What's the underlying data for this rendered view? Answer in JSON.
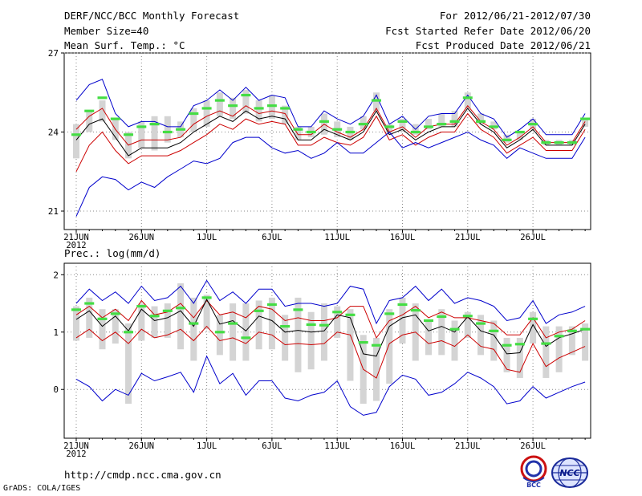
{
  "header": {
    "title": "DERF/NCC/BCC Monthly Forecast",
    "member_size": "Member Size=40",
    "variable_top": "Mean Surf. Temp.: °C",
    "period": "For 2012/06/21-2012/07/30",
    "started": "Fcst Started Refer Date 2012/06/20",
    "produced": "Fcst Produced Date 2012/06/21"
  },
  "footer": {
    "url": "http://cmdp.ncc.cma.gov.cn",
    "grads": "GrADS: COLA/IGES",
    "logo_bcc": "BCC",
    "logo_ncc": "NCC"
  },
  "colors": {
    "envelope": "#0000cc",
    "quantile": "#cc0000",
    "mean": "#000000",
    "box": "#d4d4d4",
    "marker": "#44dd44",
    "grid": "#888888"
  },
  "chart_data": [
    {
      "type": "line",
      "title": "Mean Surf. Temp.: °C",
      "x_tick_labels": [
        "21JUN",
        "26JUN",
        "1JUL",
        "6JUL",
        "11JUL",
        "16JUL",
        "21JUL",
        "26JUL"
      ],
      "x_year_label": "2012",
      "day_count": 40,
      "ylim": [
        20.3,
        27
      ],
      "y_ticks": [
        21,
        24,
        27
      ],
      "series": [
        {
          "name": "max",
          "values": [
            25.2,
            25.8,
            26.0,
            24.7,
            24.2,
            24.4,
            24.4,
            24.2,
            24.2,
            25.0,
            25.2,
            25.6,
            25.2,
            25.7,
            25.2,
            25.4,
            25.3,
            24.2,
            24.2,
            24.8,
            24.5,
            24.3,
            24.6,
            25.4,
            24.3,
            24.6,
            24.1,
            24.6,
            24.7,
            24.7,
            25.4,
            24.7,
            24.5,
            23.8,
            24.1,
            24.5,
            23.9,
            23.9,
            23.9,
            24.7
          ]
        },
        {
          "name": "upper",
          "values": [
            24.1,
            24.6,
            24.9,
            24.1,
            23.5,
            23.7,
            23.7,
            23.7,
            23.8,
            24.3,
            24.6,
            24.8,
            24.6,
            25.0,
            24.7,
            24.8,
            24.7,
            23.9,
            23.9,
            24.3,
            24.0,
            23.8,
            24.1,
            24.9,
            24.0,
            24.2,
            23.8,
            24.2,
            24.3,
            24.3,
            25.0,
            24.4,
            24.1,
            23.5,
            23.8,
            24.2,
            23.6,
            23.6,
            23.6,
            24.4
          ]
        },
        {
          "name": "mean",
          "values": [
            23.7,
            24.3,
            24.5,
            23.8,
            23.1,
            23.4,
            23.4,
            23.4,
            23.6,
            24.0,
            24.3,
            24.6,
            24.4,
            24.8,
            24.5,
            24.6,
            24.5,
            23.7,
            23.7,
            24.1,
            23.9,
            23.7,
            24.0,
            24.8,
            23.9,
            24.1,
            23.7,
            24.0,
            24.2,
            24.2,
            24.9,
            24.3,
            24.0,
            23.4,
            23.7,
            24.1,
            23.5,
            23.5,
            23.5,
            24.3
          ]
        },
        {
          "name": "lower",
          "values": [
            22.5,
            23.5,
            24.0,
            23.3,
            22.8,
            23.1,
            23.1,
            23.1,
            23.3,
            23.6,
            23.9,
            24.3,
            24.1,
            24.5,
            24.3,
            24.4,
            24.3,
            23.5,
            23.5,
            23.8,
            23.6,
            23.5,
            23.8,
            24.6,
            23.7,
            23.9,
            23.5,
            23.8,
            24.0,
            24.0,
            24.7,
            24.1,
            23.8,
            23.2,
            23.5,
            23.8,
            23.3,
            23.3,
            23.3,
            24.1
          ]
        },
        {
          "name": "min",
          "values": [
            20.8,
            21.9,
            22.3,
            22.2,
            21.8,
            22.1,
            21.9,
            22.3,
            22.6,
            22.9,
            22.8,
            23.0,
            23.6,
            23.8,
            23.8,
            23.4,
            23.2,
            23.3,
            23.0,
            23.2,
            23.6,
            23.2,
            23.2,
            23.6,
            24.0,
            23.4,
            23.6,
            23.4,
            23.6,
            23.8,
            24.0,
            23.7,
            23.5,
            23.0,
            23.4,
            23.2,
            23.0,
            23.0,
            23.0,
            23.8
          ]
        }
      ],
      "boxes": [
        {
          "lo": 23.0,
          "hi": 24.3
        },
        {
          "lo": 24.0,
          "hi": 24.8
        },
        {
          "lo": 24.4,
          "hi": 25.2
        },
        {
          "lo": 23.7,
          "hi": 24.5
        },
        {
          "lo": 23.0,
          "hi": 24.0
        },
        {
          "lo": 23.4,
          "hi": 24.4
        },
        {
          "lo": 23.3,
          "hi": 24.6
        },
        {
          "lo": 23.6,
          "hi": 24.6
        },
        {
          "lo": 23.8,
          "hi": 24.4
        },
        {
          "lo": 24.0,
          "hi": 24.9
        },
        {
          "lo": 24.2,
          "hi": 25.2
        },
        {
          "lo": 24.6,
          "hi": 25.5
        },
        {
          "lo": 24.5,
          "hi": 25.3
        },
        {
          "lo": 24.7,
          "hi": 25.6
        },
        {
          "lo": 24.4,
          "hi": 25.2
        },
        {
          "lo": 24.5,
          "hi": 25.4
        },
        {
          "lo": 24.3,
          "hi": 25.0
        },
        {
          "lo": 23.7,
          "hi": 24.2
        },
        {
          "lo": 23.8,
          "hi": 24.2
        },
        {
          "lo": 23.9,
          "hi": 24.7
        },
        {
          "lo": 23.8,
          "hi": 24.4
        },
        {
          "lo": 23.7,
          "hi": 24.2
        },
        {
          "lo": 24.1,
          "hi": 24.6
        },
        {
          "lo": 24.8,
          "hi": 25.5
        },
        {
          "lo": 23.9,
          "hi": 24.3
        },
        {
          "lo": 24.0,
          "hi": 24.5
        },
        {
          "lo": 23.9,
          "hi": 24.3
        },
        {
          "lo": 24.1,
          "hi": 24.5
        },
        {
          "lo": 24.2,
          "hi": 24.7
        },
        {
          "lo": 24.2,
          "hi": 24.8
        },
        {
          "lo": 24.9,
          "hi": 25.5
        },
        {
          "lo": 24.3,
          "hi": 24.7
        },
        {
          "lo": 24.1,
          "hi": 24.4
        },
        {
          "lo": 23.6,
          "hi": 23.9
        },
        {
          "lo": 23.7,
          "hi": 24.0
        },
        {
          "lo": 24.1,
          "hi": 24.5
        },
        {
          "lo": 23.5,
          "hi": 23.7
        },
        {
          "lo": 23.5,
          "hi": 23.7
        },
        {
          "lo": 23.5,
          "hi": 23.7
        },
        {
          "lo": 24.2,
          "hi": 24.5
        }
      ],
      "markers": [
        23.9,
        24.8,
        25.3,
        24.5,
        23.9,
        24.2,
        24.3,
        24.0,
        24.1,
        24.7,
        24.9,
        25.2,
        25.0,
        25.4,
        24.9,
        25.0,
        24.9,
        24.1,
        24.0,
        24.4,
        24.1,
        24.0,
        24.3,
        25.2,
        24.2,
        24.4,
        24.0,
        24.2,
        24.3,
        24.4,
        25.3,
        24.4,
        24.2,
        23.7,
        24.0,
        24.3,
        23.6,
        23.6,
        23.6,
        24.5
      ]
    },
    {
      "type": "line",
      "title": "Prec.: log(mm/d)",
      "x_tick_labels": [
        "21JUN",
        "26JUN",
        "1JUL",
        "6JUL",
        "11JUL",
        "16JUL",
        "21JUL",
        "26JUL"
      ],
      "x_year_label": "2012",
      "day_count": 40,
      "ylim": [
        -0.85,
        2.2
      ],
      "y_ticks": [
        0,
        1,
        2
      ],
      "series": [
        {
          "name": "max",
          "values": [
            1.5,
            1.75,
            1.55,
            1.7,
            1.5,
            1.8,
            1.55,
            1.6,
            1.8,
            1.5,
            1.9,
            1.55,
            1.7,
            1.5,
            1.75,
            1.75,
            1.45,
            1.5,
            1.5,
            1.45,
            1.5,
            1.8,
            1.75,
            1.15,
            1.55,
            1.6,
            1.8,
            1.55,
            1.75,
            1.5,
            1.6,
            1.55,
            1.45,
            1.2,
            1.25,
            1.55,
            1.15,
            1.3,
            1.35,
            1.45
          ]
        },
        {
          "name": "upper",
          "values": [
            1.3,
            1.45,
            1.25,
            1.4,
            1.2,
            1.55,
            1.3,
            1.35,
            1.5,
            1.25,
            1.55,
            1.3,
            1.35,
            1.25,
            1.45,
            1.4,
            1.2,
            1.25,
            1.2,
            1.2,
            1.25,
            1.45,
            1.45,
            0.9,
            1.2,
            1.3,
            1.45,
            1.25,
            1.35,
            1.25,
            1.25,
            1.2,
            1.15,
            0.95,
            0.95,
            1.25,
            0.9,
            1.0,
            1.05,
            1.2
          ]
        },
        {
          "name": "mean",
          "values": [
            1.22,
            1.37,
            1.1,
            1.28,
            1.02,
            1.4,
            1.2,
            1.25,
            1.37,
            1.1,
            1.57,
            1.14,
            1.2,
            1.02,
            1.28,
            1.2,
            1.0,
            1.03,
            1.0,
            1.02,
            1.3,
            1.25,
            0.62,
            0.58,
            1.1,
            1.25,
            1.3,
            1.02,
            1.1,
            1.0,
            1.27,
            1.02,
            0.95,
            0.62,
            0.64,
            1.13,
            0.75,
            0.9,
            0.97,
            1.05
          ]
        },
        {
          "name": "lower",
          "values": [
            0.9,
            1.05,
            0.85,
            1.0,
            0.8,
            1.05,
            0.9,
            0.95,
            1.05,
            0.85,
            1.1,
            0.85,
            0.9,
            0.8,
            1.0,
            0.95,
            0.78,
            0.8,
            0.78,
            0.8,
            1.0,
            0.95,
            0.35,
            0.2,
            0.8,
            0.95,
            1.0,
            0.8,
            0.85,
            0.75,
            0.95,
            0.75,
            0.7,
            0.35,
            0.3,
            0.8,
            0.4,
            0.55,
            0.65,
            0.75
          ]
        },
        {
          "name": "min",
          "values": [
            0.18,
            0.05,
            -0.2,
            0.0,
            -0.1,
            0.28,
            0.15,
            0.22,
            0.3,
            -0.05,
            0.58,
            0.1,
            0.28,
            -0.1,
            0.15,
            0.15,
            -0.15,
            -0.2,
            -0.1,
            -0.05,
            0.15,
            -0.3,
            -0.45,
            -0.4,
            0.05,
            0.25,
            0.18,
            -0.1,
            -0.05,
            0.1,
            0.3,
            0.2,
            0.05,
            -0.25,
            -0.2,
            0.05,
            -0.15,
            -0.05,
            0.05,
            0.13
          ]
        }
      ],
      "boxes": [
        {
          "lo": 0.85,
          "hi": 1.45
        },
        {
          "lo": 0.9,
          "hi": 1.6
        },
        {
          "lo": 0.7,
          "hi": 1.4
        },
        {
          "lo": 0.8,
          "hi": 1.4
        },
        {
          "lo": -0.25,
          "hi": 1.15
        },
        {
          "lo": 0.85,
          "hi": 1.5
        },
        {
          "lo": 0.9,
          "hi": 1.45
        },
        {
          "lo": 0.9,
          "hi": 1.5
        },
        {
          "lo": 0.7,
          "hi": 1.85
        },
        {
          "lo": 0.5,
          "hi": 1.6
        },
        {
          "lo": 1.05,
          "hi": 1.65
        },
        {
          "lo": 0.6,
          "hi": 1.3
        },
        {
          "lo": 0.5,
          "hi": 1.5
        },
        {
          "lo": 0.5,
          "hi": 1.5
        },
        {
          "lo": 0.7,
          "hi": 1.55
        },
        {
          "lo": 0.7,
          "hi": 1.6
        },
        {
          "lo": 0.5,
          "hi": 1.3
        },
        {
          "lo": 0.3,
          "hi": 1.6
        },
        {
          "lo": 0.35,
          "hi": 1.35
        },
        {
          "lo": 0.5,
          "hi": 1.5
        },
        {
          "lo": 0.9,
          "hi": 1.45
        },
        {
          "lo": 0.15,
          "hi": 1.4
        },
        {
          "lo": -0.25,
          "hi": 0.95
        },
        {
          "lo": -0.2,
          "hi": 0.9
        },
        {
          "lo": 0.1,
          "hi": 1.4
        },
        {
          "lo": 0.8,
          "hi": 1.6
        },
        {
          "lo": 0.5,
          "hi": 1.5
        },
        {
          "lo": 0.6,
          "hi": 1.2
        },
        {
          "lo": 0.6,
          "hi": 1.4
        },
        {
          "lo": 0.5,
          "hi": 1.2
        },
        {
          "lo": 0.9,
          "hi": 1.35
        },
        {
          "lo": 0.6,
          "hi": 1.3
        },
        {
          "lo": 0.5,
          "hi": 1.2
        },
        {
          "lo": 0.3,
          "hi": 0.9
        },
        {
          "lo": 0.2,
          "hi": 0.9
        },
        {
          "lo": 0.8,
          "hi": 1.35
        },
        {
          "lo": 0.2,
          "hi": 1.1
        },
        {
          "lo": 0.3,
          "hi": 1.1
        },
        {
          "lo": 0.6,
          "hi": 1.1
        },
        {
          "lo": 0.5,
          "hi": 1.15
        }
      ],
      "markers": [
        1.39,
        1.5,
        1.23,
        1.32,
        1.0,
        1.45,
        1.28,
        1.37,
        1.42,
        1.15,
        1.6,
        1.0,
        1.15,
        0.9,
        1.37,
        1.48,
        1.1,
        1.39,
        1.13,
        1.12,
        1.35,
        1.3,
        0.82,
        0.77,
        1.32,
        1.48,
        1.38,
        1.2,
        1.27,
        1.05,
        1.28,
        1.15,
        1.02,
        0.77,
        0.79,
        1.23,
        0.8,
        0.93,
        1.02,
        1.05
      ]
    }
  ]
}
